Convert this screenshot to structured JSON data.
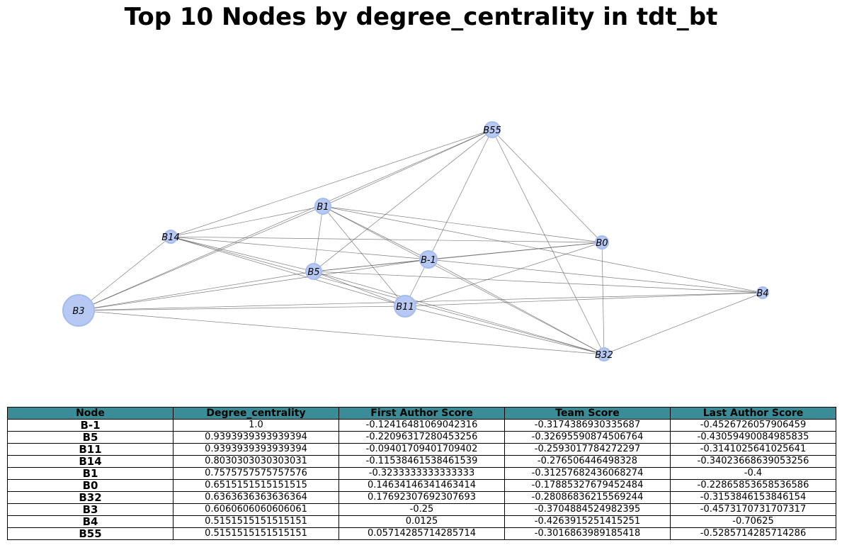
{
  "title": "Top 10 Nodes by degree_centrality in tdt_bt",
  "colors": {
    "node_fill": "#b7c9f2",
    "node_edge": "#a4bcf0",
    "edge": "#555555",
    "header_bg": "#3a8c96"
  },
  "chart_data": {
    "type": "network",
    "nodes": [
      {
        "id": "B-1",
        "degree_centrality": 1.0
      },
      {
        "id": "B5",
        "degree_centrality": 0.9393939393939394
      },
      {
        "id": "B11",
        "degree_centrality": 0.9393939393939394
      },
      {
        "id": "B14",
        "degree_centrality": 0.8030303030303031
      },
      {
        "id": "B1",
        "degree_centrality": 0.7575757575757576
      },
      {
        "id": "B0",
        "degree_centrality": 0.6515151515151515
      },
      {
        "id": "B32",
        "degree_centrality": 0.6363636363636364
      },
      {
        "id": "B3",
        "degree_centrality": 0.6060606060606061
      },
      {
        "id": "B4",
        "degree_centrality": 0.5151515151515151
      },
      {
        "id": "B55",
        "degree_centrality": 0.5151515151515151
      }
    ],
    "edges": [
      [
        "B55",
        "B1"
      ],
      [
        "B55",
        "B14"
      ],
      [
        "B55",
        "B3"
      ],
      [
        "B55",
        "B-1"
      ],
      [
        "B55",
        "B5"
      ],
      [
        "B55",
        "B0"
      ],
      [
        "B55",
        "B32"
      ],
      [
        "B1",
        "B14"
      ],
      [
        "B1",
        "B3"
      ],
      [
        "B1",
        "B5"
      ],
      [
        "B1",
        "B-1"
      ],
      [
        "B1",
        "B11"
      ],
      [
        "B1",
        "B0"
      ],
      [
        "B1",
        "B32"
      ],
      [
        "B1",
        "B4"
      ],
      [
        "B14",
        "B0"
      ],
      [
        "B14",
        "B-1"
      ],
      [
        "B14",
        "B5"
      ],
      [
        "B14",
        "B11"
      ],
      [
        "B14",
        "B32"
      ],
      [
        "B14",
        "B3"
      ],
      [
        "B5",
        "B-1"
      ],
      [
        "B5",
        "B0"
      ],
      [
        "B5",
        "B11"
      ],
      [
        "B5",
        "B32"
      ],
      [
        "B5",
        "B4"
      ],
      [
        "B5",
        "B3"
      ],
      [
        "B-1",
        "B0"
      ],
      [
        "B-1",
        "B4"
      ],
      [
        "B-1",
        "B11"
      ],
      [
        "B-1",
        "B32"
      ],
      [
        "B-1",
        "B3"
      ],
      [
        "B3",
        "B11"
      ],
      [
        "B3",
        "B4"
      ],
      [
        "B3",
        "B32"
      ],
      [
        "B11",
        "B4"
      ],
      [
        "B11",
        "B0"
      ],
      [
        "B11",
        "B32"
      ],
      [
        "B0",
        "B32"
      ],
      [
        "B32",
        "B4"
      ]
    ]
  },
  "table": {
    "headers": [
      "Node",
      "Degree_centrality",
      "First Author Score",
      "Team Score",
      "Last Author Score"
    ],
    "rows": [
      [
        "B-1",
        "1.0",
        "-0.12416481069042316",
        "-0.3174386930335687",
        "-0.4526726057906459"
      ],
      [
        "B5",
        "0.9393939393939394",
        "-0.22096317280453256",
        "-0.32695590874506764",
        "-0.43059490084985835"
      ],
      [
        "B11",
        "0.9393939393939394",
        "-0.09401709401709402",
        "-0.2593017784272297",
        "-0.3141025641025641"
      ],
      [
        "B14",
        "0.8030303030303031",
        "-0.11538461538461539",
        "-0.276506446498328",
        "-0.34023668639053256"
      ],
      [
        "B1",
        "0.7575757575757576",
        "-0.3233333333333333",
        "-0.31257682436068274",
        "-0.4"
      ],
      [
        "B0",
        "0.6515151515151515",
        "0.14634146341463414",
        "-0.17885327679452484",
        "-0.22865853658536586"
      ],
      [
        "B32",
        "0.6363636363636364",
        "0.17692307692307693",
        "-0.28086836215569244",
        "-0.3153846153846154"
      ],
      [
        "B3",
        "0.6060606060606061",
        "-0.25",
        "-0.3704884524982395",
        "-0.4573170731707317"
      ],
      [
        "B4",
        "0.5151515151515151",
        "0.0125",
        "-0.4263915251415251",
        "-0.70625"
      ],
      [
        "B55",
        "0.5151515151515151",
        "0.05714285714285714",
        "-0.3016863989185418",
        "-0.5285714285714286"
      ]
    ]
  }
}
